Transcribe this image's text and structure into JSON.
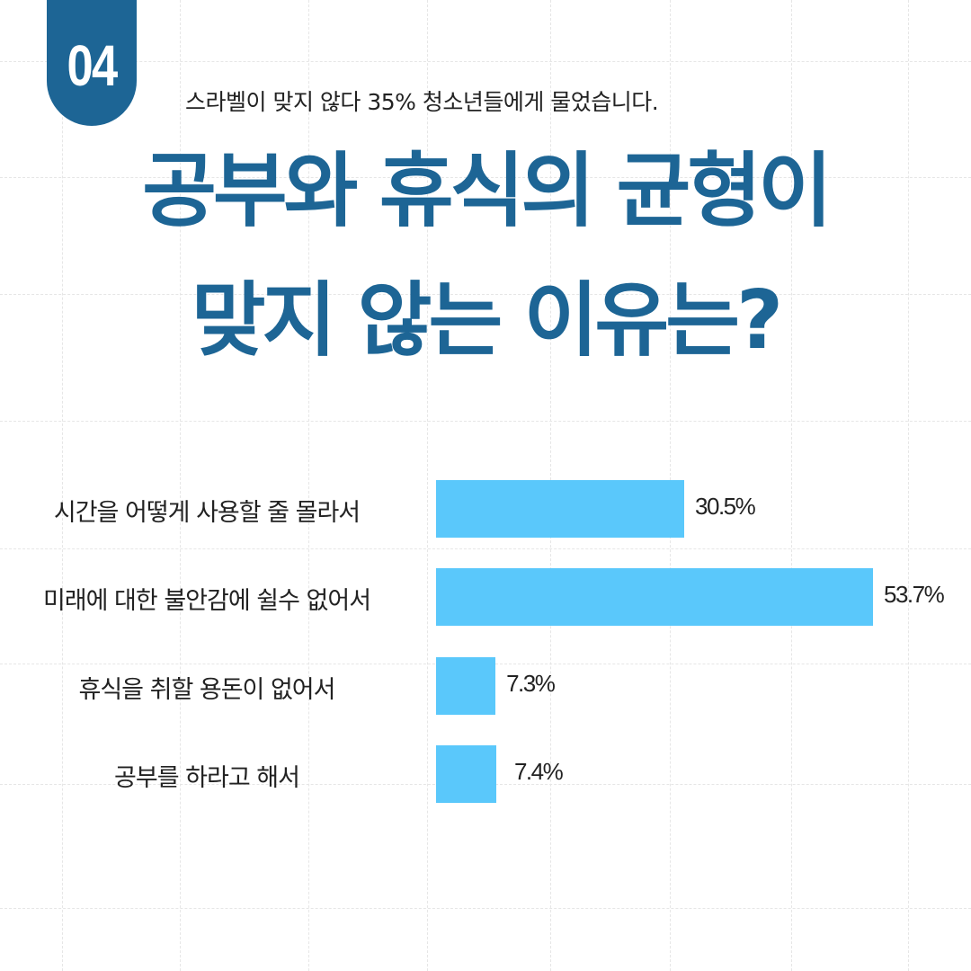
{
  "badge": {
    "number": "04"
  },
  "subtitle": "스라벨이 맞지 않다  35% 청소년들에게 물었습니다.",
  "title": {
    "line1": "공부와 휴식의 균형이",
    "line2": "맞지 않는 이유는?"
  },
  "colors": {
    "primary": "#1d6595",
    "bar": "#5ac8fb"
  },
  "chart_data": {
    "type": "bar",
    "orientation": "horizontal",
    "categories": [
      "시간을 어떻게 사용할 줄 몰라서",
      "미래에 대한 불안감에 쉴수 없어서",
      "휴식을 취할 용돈이 없어서",
      "공부를 하라고 해서"
    ],
    "values": [
      30.5,
      53.7,
      7.3,
      7.4
    ],
    "value_labels": [
      "30.5%",
      "53.7%",
      "7.3%",
      "7.4%"
    ]
  }
}
